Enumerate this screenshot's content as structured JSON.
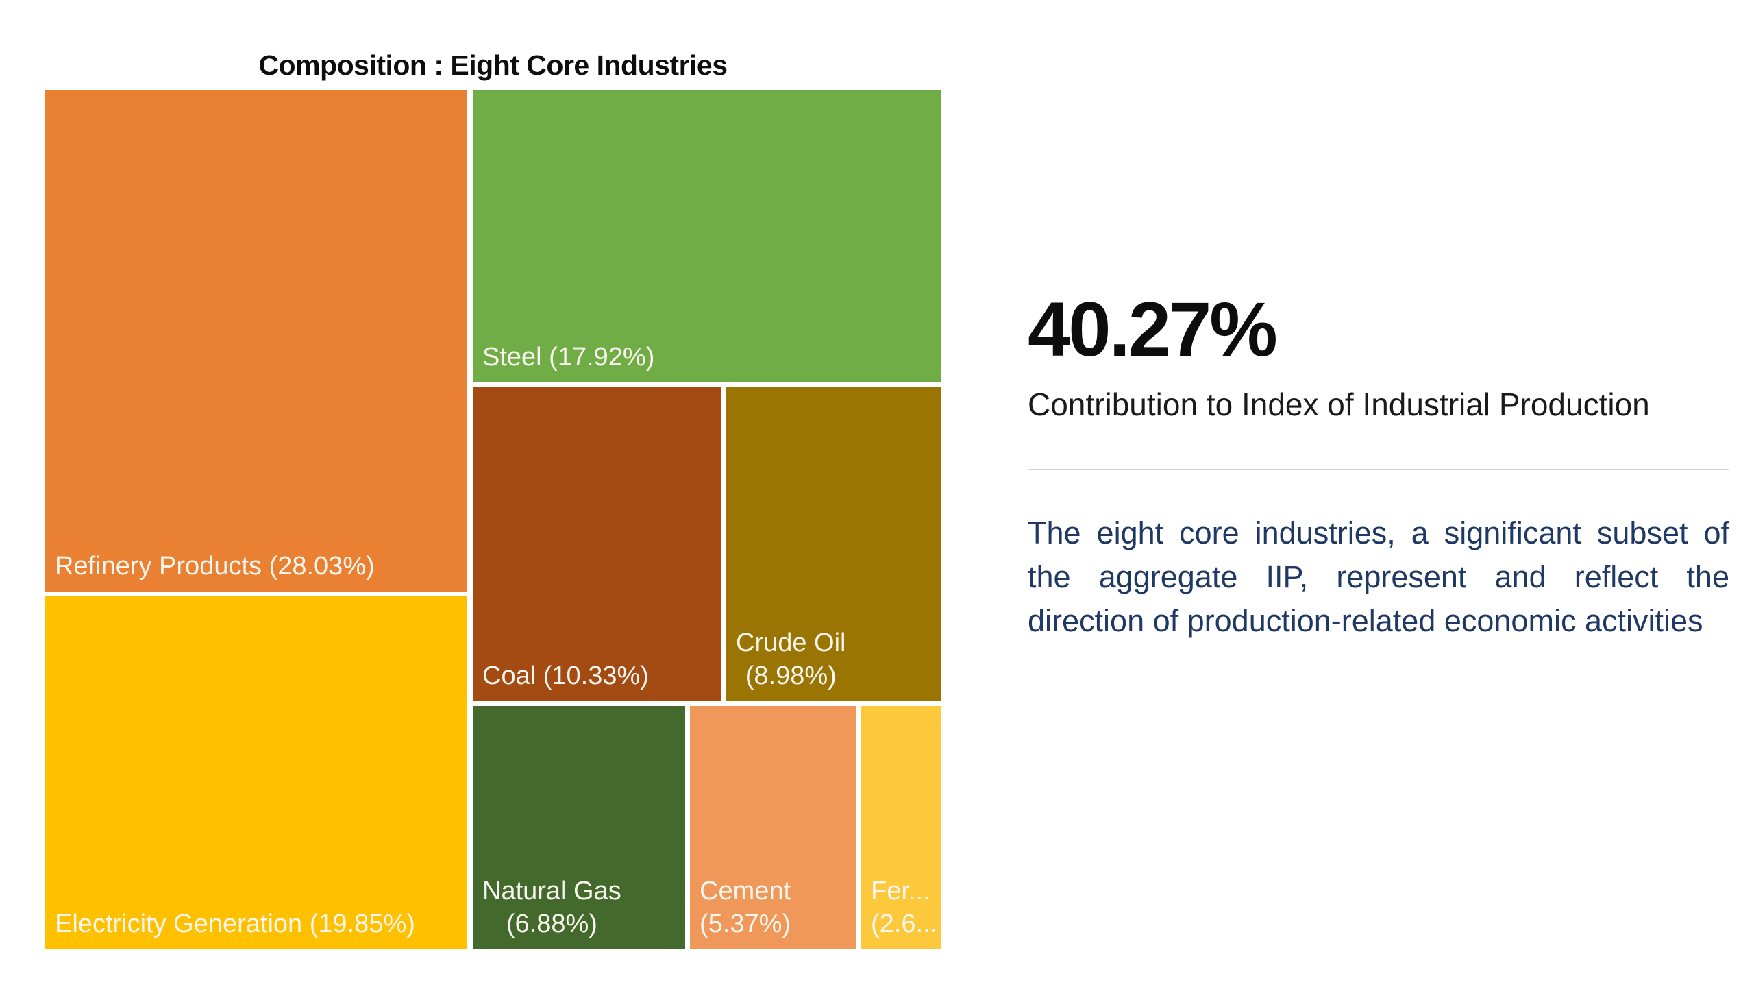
{
  "chart_data": {
    "type": "treemap",
    "title": "Composition : Eight Core Industries",
    "unit": "percent share",
    "legend_position": "none",
    "label_color": "#F9F6EF",
    "background": "#FFFFFF",
    "segments": [
      {
        "name": "Refinery Products",
        "value": 28.03,
        "color": "#EA8132",
        "lines": [
          "Refinery Products (28.03%)"
        ]
      },
      {
        "name": "Electricity Generation",
        "value": 19.85,
        "color": "#FFC000",
        "lines": [
          "Electricity Generation (19.85%)"
        ]
      },
      {
        "name": "Steel",
        "value": 17.92,
        "color": "#70AD47",
        "lines": [
          "Steel (17.92%)"
        ]
      },
      {
        "name": "Coal",
        "value": 10.33,
        "color": "#A34B12",
        "lines": [
          "Coal (10.33%)"
        ]
      },
      {
        "name": "Crude Oil",
        "value": 8.98,
        "color": "#9B7503",
        "lines": [
          "Crude Oil",
          "(8.98%)"
        ]
      },
      {
        "name": "Natural Gas",
        "value": 6.88,
        "color": "#44692C",
        "lines": [
          "Natural Gas",
          "(6.88%)"
        ]
      },
      {
        "name": "Cement",
        "value": 5.37,
        "color": "#F0975A",
        "lines": [
          "Cement",
          "(5.37%)"
        ]
      },
      {
        "name": "Fertilizers",
        "value": 2.6,
        "color": "#FCC93C",
        "lines": [
          "Fer...",
          "(2.6..."
        ],
        "truncated": true
      }
    ]
  },
  "info_panel": {
    "headline_value": "40.27%",
    "headline_caption": "Contribution to Index of Industrial Production",
    "description": "The eight core industries, a significant subset of the aggregate IIP, represent and reflect the direction of production-related economic activities",
    "description_color": "#1F3864"
  }
}
